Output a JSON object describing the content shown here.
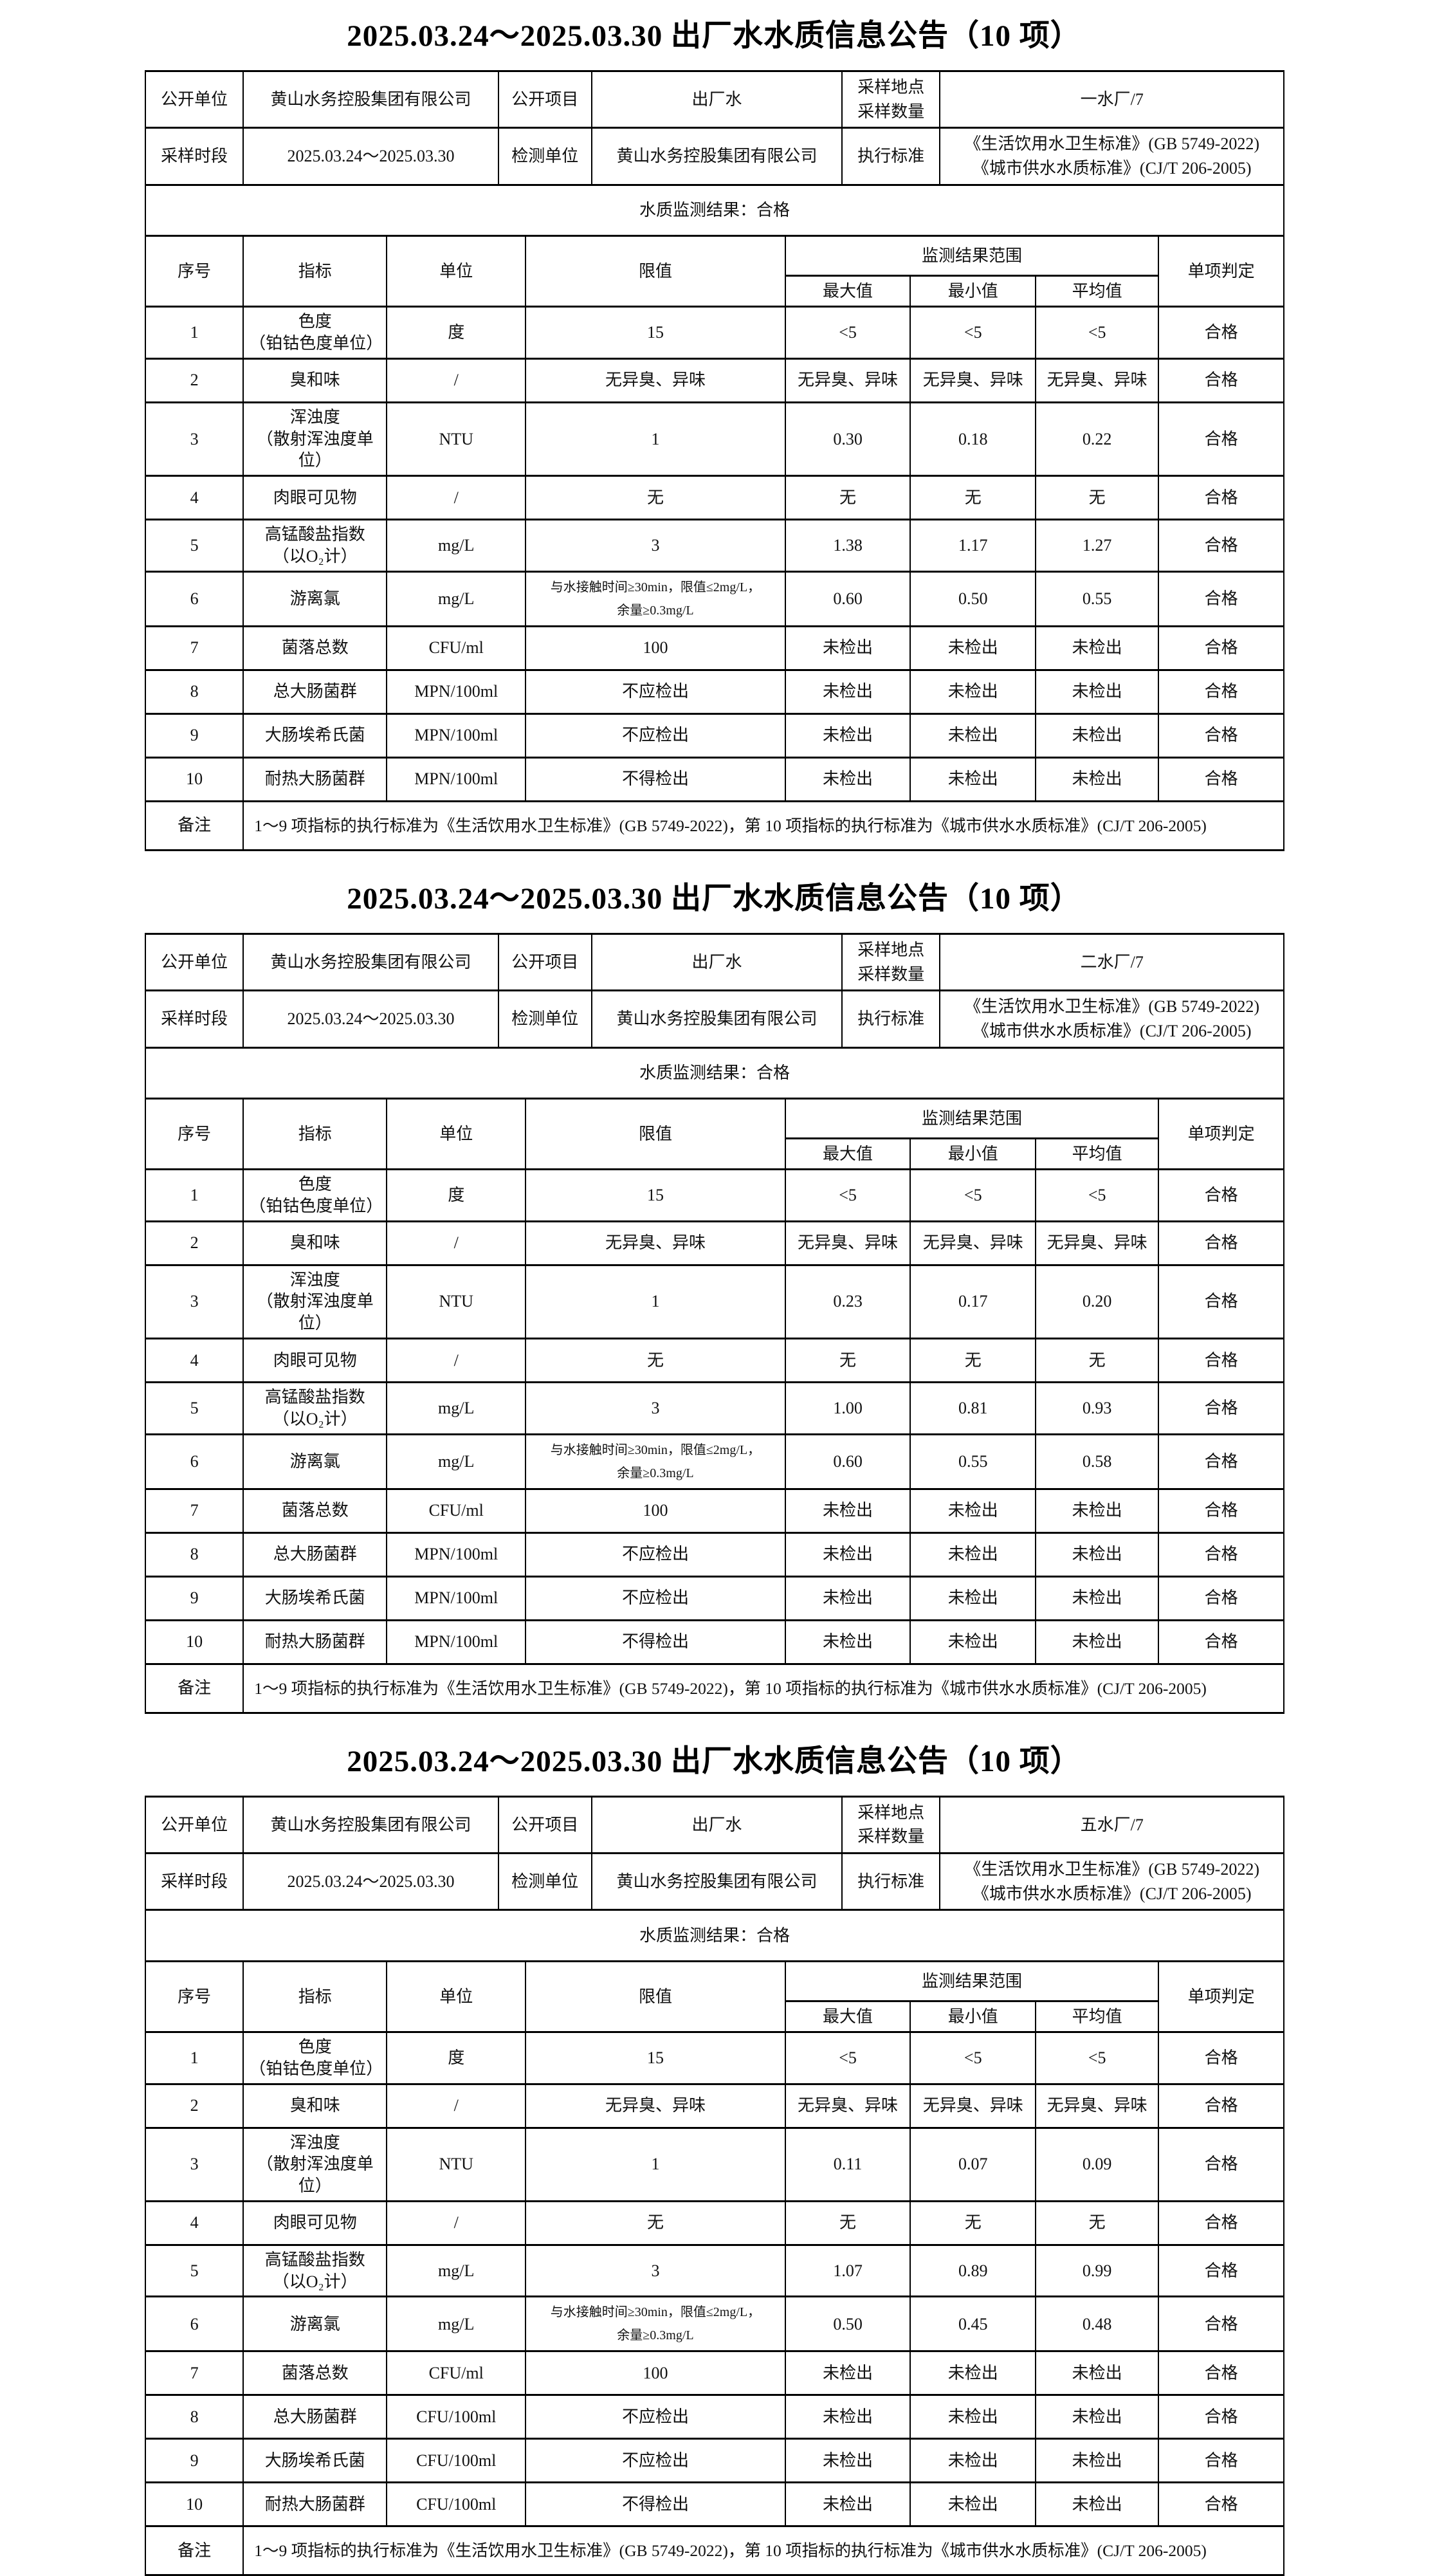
{
  "page": {
    "title": "2025.03.24～2025.03.30 出厂水水质信息公告（10 项）"
  },
  "labels": {
    "publisher": "公开单位",
    "project": "公开项目",
    "location": "采样地点\n采样数量",
    "period": "采样时段",
    "test_unit": "检测单位",
    "standard": "执行标准",
    "result": "水质监测结果：合格",
    "remark": "备注",
    "col_no": "序号",
    "col_indicator": "指标",
    "col_unit": "单位",
    "col_limit": "限值",
    "col_range": "监测结果范围",
    "col_max": "最大值",
    "col_min": "最小值",
    "col_avg": "平均值",
    "col_verdict": "单项判定"
  },
  "common": {
    "publisher_value": "黄山水务控股集团有限公司",
    "project_value": "出厂水",
    "period_value": "2025.03.24～2025.03.30",
    "test_unit_value": "黄山水务控股集团有限公司",
    "standard_value": "《生活饮用水卫生标准》(GB 5749-2022)\n《城市供水水质标准》(CJ/T 206-2005)",
    "remark_text": "1～9 项指标的执行标准为《生活饮用水卫生标准》(GB 5749-2022)，第 10 项指标的执行标准为《城市供水水质标准》(CJ/T 206-2005)",
    "text_color": "#111111",
    "border_color": "#000000",
    "background_color": "#ffffff"
  },
  "tables": [
    {
      "location_value": "一水厂/7",
      "rows": [
        {
          "no": "1",
          "indicator": "色度\n（铂钴色度单位）",
          "unit": "度",
          "limit": "15",
          "max": "<5",
          "min": "<5",
          "avg": "<5",
          "verdict": "合格"
        },
        {
          "no": "2",
          "indicator": "臭和味",
          "unit": "/",
          "limit": "无异臭、异味",
          "max": "无异臭、异味",
          "min": "无异臭、异味",
          "avg": "无异臭、异味",
          "verdict": "合格"
        },
        {
          "no": "3",
          "indicator": "浑浊度\n（散射浑浊度单位）",
          "unit": "NTU",
          "limit": "1",
          "max": "0.30",
          "min": "0.18",
          "avg": "0.22",
          "verdict": "合格"
        },
        {
          "no": "4",
          "indicator": "肉眼可见物",
          "unit": "/",
          "limit": "无",
          "max": "无",
          "min": "无",
          "avg": "无",
          "verdict": "合格"
        },
        {
          "no": "5",
          "indicator": "高锰酸盐指数\n（以O₂计）",
          "unit": "mg/L",
          "limit": "3",
          "max": "1.38",
          "min": "1.17",
          "avg": "1.27",
          "verdict": "合格"
        },
        {
          "no": "6",
          "indicator": "游离氯",
          "unit": "mg/L",
          "limit": "与水接触时间≥30min，限值≤2mg/L，\n余量≥0.3mg/L",
          "max": "0.60",
          "min": "0.50",
          "avg": "0.55",
          "verdict": "合格"
        },
        {
          "no": "7",
          "indicator": "菌落总数",
          "unit": "CFU/ml",
          "limit": "100",
          "max": "未检出",
          "min": "未检出",
          "avg": "未检出",
          "verdict": "合格"
        },
        {
          "no": "8",
          "indicator": "总大肠菌群",
          "unit": "MPN/100ml",
          "limit": "不应检出",
          "max": "未检出",
          "min": "未检出",
          "avg": "未检出",
          "verdict": "合格"
        },
        {
          "no": "9",
          "indicator": "大肠埃希氏菌",
          "unit": "MPN/100ml",
          "limit": "不应检出",
          "max": "未检出",
          "min": "未检出",
          "avg": "未检出",
          "verdict": "合格"
        },
        {
          "no": "10",
          "indicator": "耐热大肠菌群",
          "unit": "MPN/100ml",
          "limit": "不得检出",
          "max": "未检出",
          "min": "未检出",
          "avg": "未检出",
          "verdict": "合格"
        }
      ]
    },
    {
      "location_value": "二水厂/7",
      "rows": [
        {
          "no": "1",
          "indicator": "色度\n（铂钴色度单位）",
          "unit": "度",
          "limit": "15",
          "max": "<5",
          "min": "<5",
          "avg": "<5",
          "verdict": "合格"
        },
        {
          "no": "2",
          "indicator": "臭和味",
          "unit": "/",
          "limit": "无异臭、异味",
          "max": "无异臭、异味",
          "min": "无异臭、异味",
          "avg": "无异臭、异味",
          "verdict": "合格"
        },
        {
          "no": "3",
          "indicator": "浑浊度\n（散射浑浊度单位）",
          "unit": "NTU",
          "limit": "1",
          "max": "0.23",
          "min": "0.17",
          "avg": "0.20",
          "verdict": "合格"
        },
        {
          "no": "4",
          "indicator": "肉眼可见物",
          "unit": "/",
          "limit": "无",
          "max": "无",
          "min": "无",
          "avg": "无",
          "verdict": "合格"
        },
        {
          "no": "5",
          "indicator": "高锰酸盐指数\n（以O₂计）",
          "unit": "mg/L",
          "limit": "3",
          "max": "1.00",
          "min": "0.81",
          "avg": "0.93",
          "verdict": "合格"
        },
        {
          "no": "6",
          "indicator": "游离氯",
          "unit": "mg/L",
          "limit": "与水接触时间≥30min，限值≤2mg/L，\n余量≥0.3mg/L",
          "max": "0.60",
          "min": "0.55",
          "avg": "0.58",
          "verdict": "合格"
        },
        {
          "no": "7",
          "indicator": "菌落总数",
          "unit": "CFU/ml",
          "limit": "100",
          "max": "未检出",
          "min": "未检出",
          "avg": "未检出",
          "verdict": "合格"
        },
        {
          "no": "8",
          "indicator": "总大肠菌群",
          "unit": "MPN/100ml",
          "limit": "不应检出",
          "max": "未检出",
          "min": "未检出",
          "avg": "未检出",
          "verdict": "合格"
        },
        {
          "no": "9",
          "indicator": "大肠埃希氏菌",
          "unit": "MPN/100ml",
          "limit": "不应检出",
          "max": "未检出",
          "min": "未检出",
          "avg": "未检出",
          "verdict": "合格"
        },
        {
          "no": "10",
          "indicator": "耐热大肠菌群",
          "unit": "MPN/100ml",
          "limit": "不得检出",
          "max": "未检出",
          "min": "未检出",
          "avg": "未检出",
          "verdict": "合格"
        }
      ]
    },
    {
      "location_value": "五水厂/7",
      "rows": [
        {
          "no": "1",
          "indicator": "色度\n（铂钴色度单位）",
          "unit": "度",
          "limit": "15",
          "max": "<5",
          "min": "<5",
          "avg": "<5",
          "verdict": "合格"
        },
        {
          "no": "2",
          "indicator": "臭和味",
          "unit": "/",
          "limit": "无异臭、异味",
          "max": "无异臭、异味",
          "min": "无异臭、异味",
          "avg": "无异臭、异味",
          "verdict": "合格"
        },
        {
          "no": "3",
          "indicator": "浑浊度\n（散射浑浊度单位）",
          "unit": "NTU",
          "limit": "1",
          "max": "0.11",
          "min": "0.07",
          "avg": "0.09",
          "verdict": "合格"
        },
        {
          "no": "4",
          "indicator": "肉眼可见物",
          "unit": "/",
          "limit": "无",
          "max": "无",
          "min": "无",
          "avg": "无",
          "verdict": "合格"
        },
        {
          "no": "5",
          "indicator": "高锰酸盐指数\n（以O₂计）",
          "unit": "mg/L",
          "limit": "3",
          "max": "1.07",
          "min": "0.89",
          "avg": "0.99",
          "verdict": "合格"
        },
        {
          "no": "6",
          "indicator": "游离氯",
          "unit": "mg/L",
          "limit": "与水接触时间≥30min，限值≤2mg/L，\n余量≥0.3mg/L",
          "max": "0.50",
          "min": "0.45",
          "avg": "0.48",
          "verdict": "合格"
        },
        {
          "no": "7",
          "indicator": "菌落总数",
          "unit": "CFU/ml",
          "limit": "100",
          "max": "未检出",
          "min": "未检出",
          "avg": "未检出",
          "verdict": "合格"
        },
        {
          "no": "8",
          "indicator": "总大肠菌群",
          "unit": "CFU/100ml",
          "limit": "不应检出",
          "max": "未检出",
          "min": "未检出",
          "avg": "未检出",
          "verdict": "合格"
        },
        {
          "no": "9",
          "indicator": "大肠埃希氏菌",
          "unit": "CFU/100ml",
          "limit": "不应检出",
          "max": "未检出",
          "min": "未检出",
          "avg": "未检出",
          "verdict": "合格"
        },
        {
          "no": "10",
          "indicator": "耐热大肠菌群",
          "unit": "CFU/100ml",
          "limit": "不得检出",
          "max": "未检出",
          "min": "未检出",
          "avg": "未检出",
          "verdict": "合格"
        }
      ]
    }
  ]
}
